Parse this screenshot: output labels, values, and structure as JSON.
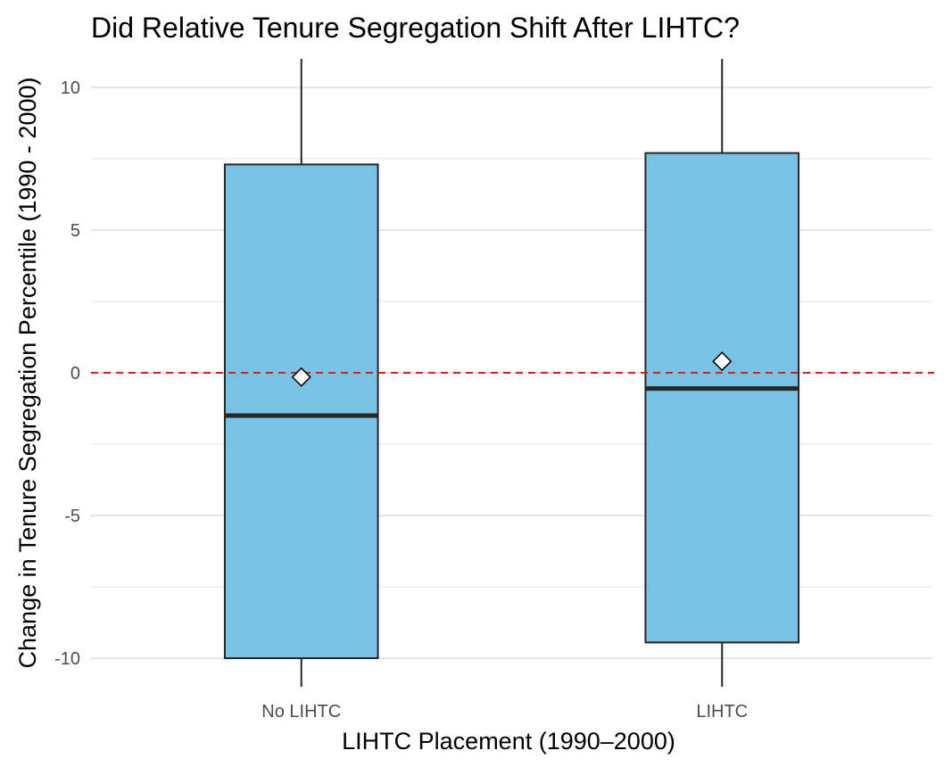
{
  "chart_data": {
    "type": "box",
    "title": "Did Relative Tenure Segregation Shift After LIHTC?",
    "xlabel": "LIHTC Placement (1990–2000)",
    "ylabel": "Change in Tenure Segregation Percentile (1990 - 2000)",
    "categories": [
      "No LIHTC",
      "LIHTC"
    ],
    "ylim": [
      -11,
      11
    ],
    "yticks": [
      -10,
      -5,
      0,
      5,
      10
    ],
    "ytick_labels": [
      "-10",
      "-5",
      "0",
      "5",
      "10"
    ],
    "grid": true,
    "boxes": [
      {
        "category": "No LIHTC",
        "q1": -10.0,
        "median": -1.5,
        "q3": 7.3,
        "whisker_low": -11,
        "whisker_high": 11,
        "mean": -0.15
      },
      {
        "category": "LIHTC",
        "q1": -9.45,
        "median": -0.55,
        "q3": 7.7,
        "whisker_low": -11,
        "whisker_high": 11,
        "mean": 0.4
      }
    ],
    "reference_line": {
      "y": 0,
      "style": "dashed",
      "color": "#e41a1c"
    },
    "colors": {
      "box_fill": "#78c2e4",
      "box_stroke": "#262626",
      "median_line": "#262626",
      "mean_marker_fill": "#ffffff",
      "mean_marker_stroke": "#000000",
      "grid": "#e6e6e6",
      "tick_text": "#4d4d4d"
    }
  }
}
